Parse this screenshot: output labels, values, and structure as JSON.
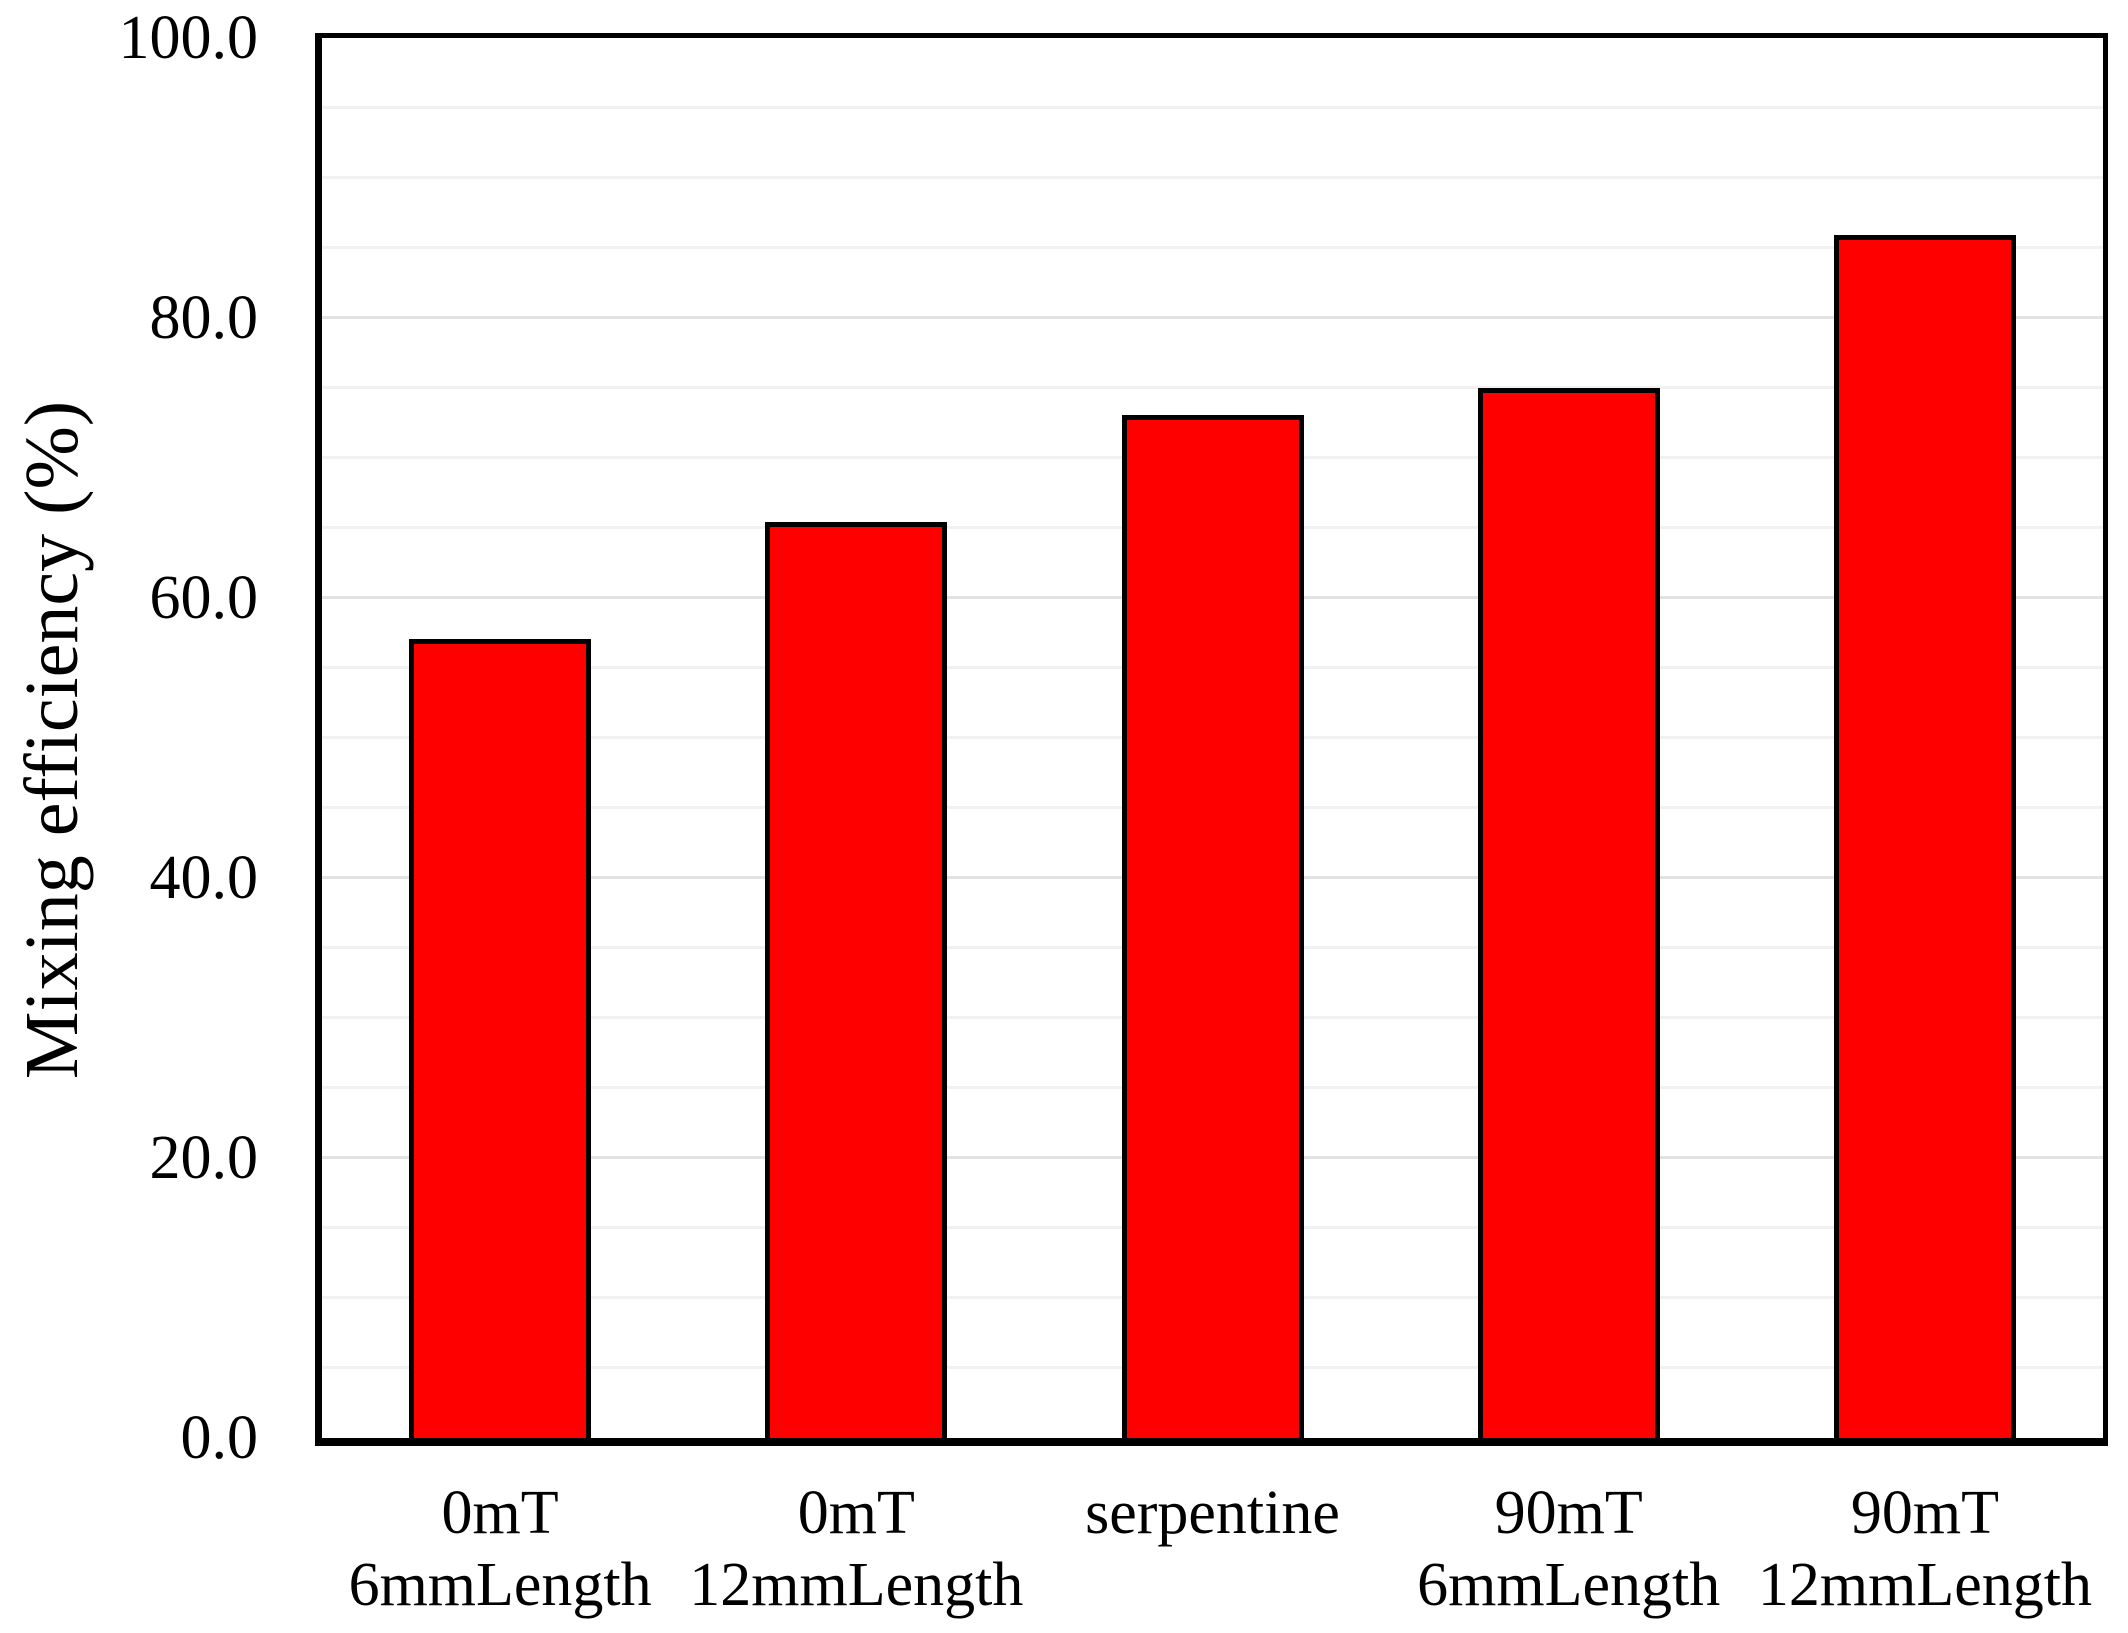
{
  "chart_data": {
    "type": "bar",
    "title": "",
    "ylabel": "Mixing efficiency (%)",
    "xlabel": "",
    "ylim": [
      0,
      100
    ],
    "y_major_unit": 20,
    "y_minor_unit": 5,
    "y_tick_labels": [
      "100.0",
      "80.0",
      "60.0",
      "40.0",
      "20.0",
      "0.0"
    ],
    "categories": [
      {
        "line1": "0mT",
        "line2": "6mmLength"
      },
      {
        "line1": "0mT",
        "line2": "12mmLength"
      },
      {
        "line1": "serpentine",
        "line2": ""
      },
      {
        "line1": "90mT",
        "line2": "6mmLength"
      },
      {
        "line1": "90mT",
        "line2": "12mmLength"
      }
    ],
    "values": [
      57.1,
      65.4,
      73.1,
      75.0,
      85.9
    ],
    "grid": true,
    "legend": "none",
    "colors": {
      "bar_fill": "#ff0000",
      "bar_border": "#000000",
      "axis": "#000000",
      "gridline_minor": "#f1f1f1",
      "gridline_major": "#e2e2e2",
      "background": "#ffffff",
      "text": "#000000"
    }
  }
}
